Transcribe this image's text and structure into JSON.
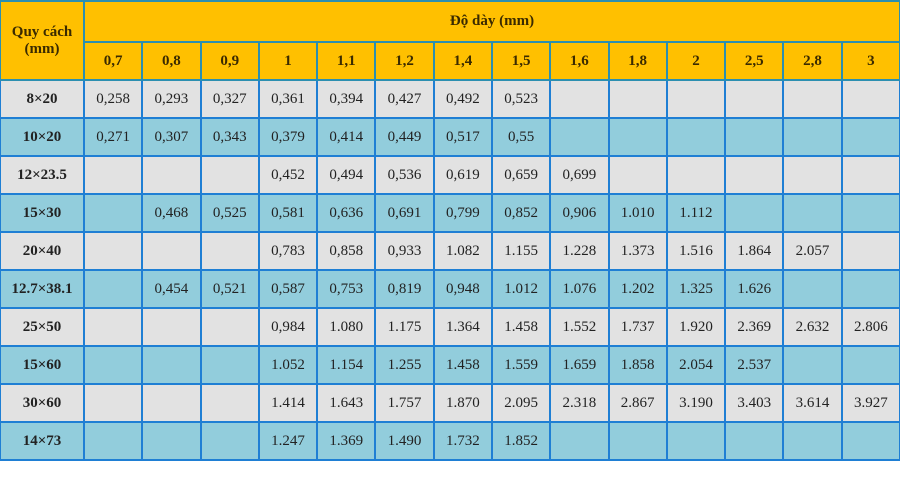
{
  "table": {
    "spec_header": "Quy cách (mm)",
    "thickness_header": "Độ dày (mm)",
    "thicknesses": [
      "0,7",
      "0,8",
      "0,9",
      "1",
      "1,1",
      "1,2",
      "1,4",
      "1,5",
      "1,6",
      "1,8",
      "2",
      "2,5",
      "2,8",
      "3"
    ],
    "rows": [
      {
        "spec": "8×20",
        "values": [
          "0,258",
          "0,293",
          "0,327",
          "0,361",
          "0,394",
          "0,427",
          "0,492",
          "0,523",
          "",
          "",
          "",
          "",
          "",
          ""
        ]
      },
      {
        "spec": "10×20",
        "values": [
          "0,271",
          "0,307",
          "0,343",
          "0,379",
          "0,414",
          "0,449",
          "0,517",
          "0,55",
          "",
          "",
          "",
          "",
          "",
          ""
        ]
      },
      {
        "spec": "12×23.5",
        "values": [
          "",
          "",
          "",
          "0,452",
          "0,494",
          "0,536",
          "0,619",
          "0,659",
          "0,699",
          "",
          "",
          "",
          "",
          ""
        ]
      },
      {
        "spec": "15×30",
        "values": [
          "",
          "0,468",
          "0,525",
          "0,581",
          "0,636",
          "0,691",
          "0,799",
          "0,852",
          "0,906",
          "1.010",
          "1.112",
          "",
          "",
          ""
        ]
      },
      {
        "spec": "20×40",
        "values": [
          "",
          "",
          "",
          "0,783",
          "0,858",
          "0,933",
          "1.082",
          "1.155",
          "1.228",
          "1.373",
          "1.516",
          "1.864",
          "2.057",
          ""
        ]
      },
      {
        "spec": "12.7×38.1",
        "values": [
          "",
          "0,454",
          "0,521",
          "0,587",
          "0,753",
          "0,819",
          "0,948",
          "1.012",
          "1.076",
          "1.202",
          "1.325",
          "1.626",
          "",
          ""
        ]
      },
      {
        "spec": "25×50",
        "values": [
          "",
          "",
          "",
          "0,984",
          "1.080",
          "1.175",
          "1.364",
          "1.458",
          "1.552",
          "1.737",
          "1.920",
          "2.369",
          "2.632",
          "2.806"
        ]
      },
      {
        "spec": "15×60",
        "values": [
          "",
          "",
          "",
          "1.052",
          "1.154",
          "1.255",
          "1.458",
          "1.559",
          "1.659",
          "1.858",
          "2.054",
          "2.537",
          "",
          ""
        ]
      },
      {
        "spec": "30×60",
        "values": [
          "",
          "",
          "",
          "1.414",
          "1.643",
          "1.757",
          "1.870",
          "2.095",
          "2.318",
          "2.867",
          "3.190",
          "3.403",
          "3.614",
          "3.927"
        ]
      },
      {
        "spec": "14×73",
        "values": [
          "",
          "",
          "",
          "1.247",
          "1.369",
          "1.490",
          "1.732",
          "1.852",
          "",
          "",
          "",
          "",
          "",
          ""
        ]
      }
    ]
  }
}
